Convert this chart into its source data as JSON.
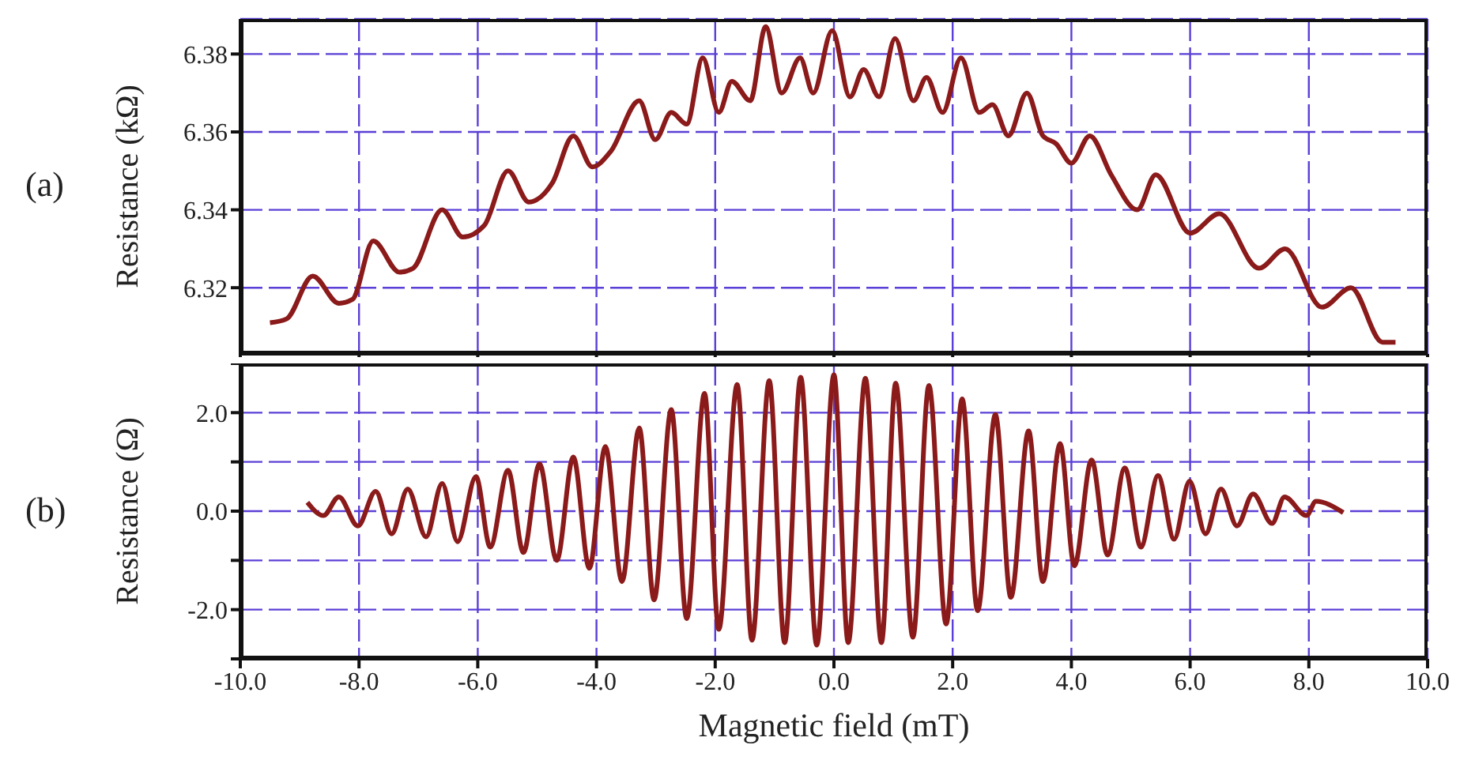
{
  "chart_data": [
    {
      "type": "line",
      "ylabel": "Resistance (kΩ)",
      "annotations": [
        "(a)"
      ],
      "xlim": [
        -10,
        10
      ],
      "xticks": [
        -10,
        -8,
        -6,
        -4,
        -2,
        0,
        2,
        4,
        6,
        8,
        10
      ],
      "ylim": [
        6.303,
        6.389
      ],
      "yticks": [
        6.32,
        6.34,
        6.36,
        6.38
      ],
      "grid": true,
      "tick_labels": "y",
      "series": [
        {
          "color": "#8b1a1a",
          "x": [
            -9.5,
            -9.22,
            -8.78,
            -8.34,
            -8.11,
            -7.76,
            -7.32,
            -7.09,
            -6.6,
            -6.25,
            -5.89,
            -5.49,
            -5.14,
            -4.74,
            -4.39,
            -4.07,
            -3.76,
            -3.28,
            -3.01,
            -2.74,
            -2.48,
            -2.21,
            -1.94,
            -1.72,
            -1.41,
            -1.15,
            -0.88,
            -0.57,
            -0.35,
            -0.03,
            0.27,
            0.5,
            0.76,
            1.03,
            1.34,
            1.56,
            1.83,
            2.14,
            2.45,
            2.67,
            2.94,
            3.25,
            3.52,
            3.74,
            4.0,
            4.31,
            4.67,
            5.11,
            5.42,
            6.0,
            6.49,
            7.16,
            7.6,
            8.22,
            8.71,
            9.24,
            9.46
          ],
          "values": [
            6.311,
            6.312,
            6.323,
            6.316,
            6.317,
            6.332,
            6.324,
            6.325,
            6.34,
            6.333,
            6.336,
            6.35,
            6.342,
            6.347,
            6.359,
            6.351,
            6.355,
            6.368,
            6.358,
            6.365,
            6.362,
            6.379,
            6.365,
            6.373,
            6.368,
            6.387,
            6.37,
            6.379,
            6.37,
            6.386,
            6.369,
            6.376,
            6.369,
            6.384,
            6.368,
            6.374,
            6.365,
            6.379,
            6.365,
            6.367,
            6.359,
            6.37,
            6.359,
            6.357,
            6.352,
            6.359,
            6.349,
            6.34,
            6.349,
            6.334,
            6.339,
            6.325,
            6.33,
            6.315,
            6.32,
            6.306,
            6.306
          ]
        }
      ]
    },
    {
      "type": "line",
      "xlabel": "Magnetic field (mT)",
      "ylabel": "Resistance (Ω)",
      "annotations": [
        "(b)"
      ],
      "xlim": [
        -10,
        10
      ],
      "xticks": [
        {
          "value": -10,
          "label": "-10.0"
        },
        {
          "value": -8,
          "label": "-8.0"
        },
        {
          "value": -6,
          "label": "-6.0"
        },
        {
          "value": -4,
          "label": "-4.0"
        },
        {
          "value": -2,
          "label": "-2.0"
        },
        {
          "value": 0,
          "label": "0.0"
        },
        {
          "value": 2,
          "label": "2.0"
        },
        {
          "value": 4,
          "label": "4.0"
        },
        {
          "value": 6,
          "label": "6.0"
        },
        {
          "value": 8,
          "label": "8.0"
        },
        {
          "value": 10,
          "label": "10.0"
        }
      ],
      "ylim": [
        -3,
        3
      ],
      "yticks": [
        {
          "value": -3,
          "label": null
        },
        {
          "value": -2,
          "label": "-2.0"
        },
        {
          "value": -1,
          "label": null
        },
        {
          "value": 0,
          "label": "0.0"
        },
        {
          "value": 1,
          "label": null
        },
        {
          "value": 2,
          "label": "2.0"
        },
        {
          "value": 3,
          "label": null
        }
      ],
      "grid": true,
      "series": [
        {
          "color": "#8b1a1a",
          "x": [
            -8.87,
            -8.6,
            -8.34,
            -8.02,
            -7.72,
            -7.45,
            -7.18,
            -6.87,
            -6.6,
            -6.34,
            -6.03,
            -5.79,
            -5.49,
            -5.23,
            -4.96,
            -4.67,
            -4.39,
            -4.12,
            -3.85,
            -3.57,
            -3.28,
            -3.03,
            -2.74,
            -2.48,
            -2.18,
            -1.94,
            -1.63,
            -1.38,
            -1.09,
            -0.83,
            -0.56,
            -0.29,
            0,
            0.24,
            0.53,
            0.8,
            1.04,
            1.33,
            1.6,
            1.89,
            2.16,
            2.42,
            2.72,
            2.98,
            3.28,
            3.52,
            3.81,
            4.05,
            4.34,
            4.61,
            4.9,
            5.17,
            5.46,
            5.73,
            5.99,
            6.26,
            6.52,
            6.79,
            7.06,
            7.38,
            7.59,
            7.96,
            8.12,
            8.58
          ],
          "values": [
            0.18,
            -0.09,
            0.29,
            -0.3,
            0.4,
            -0.46,
            0.45,
            -0.52,
            0.56,
            -0.62,
            0.7,
            -0.73,
            0.83,
            -0.84,
            0.96,
            -1.0,
            1.1,
            -1.16,
            1.31,
            -1.43,
            1.69,
            -1.8,
            2.06,
            -2.18,
            2.39,
            -2.4,
            2.57,
            -2.62,
            2.65,
            -2.67,
            2.72,
            -2.72,
            2.77,
            -2.67,
            2.7,
            -2.67,
            2.6,
            -2.56,
            2.55,
            -2.29,
            2.28,
            -2.02,
            1.96,
            -1.75,
            1.63,
            -1.43,
            1.37,
            -1.11,
            1.04,
            -0.89,
            0.88,
            -0.73,
            0.72,
            -0.57,
            0.61,
            -0.46,
            0.45,
            -0.3,
            0.35,
            -0.25,
            0.29,
            -0.09,
            0.2,
            -0.03
          ]
        }
      ]
    }
  ]
}
